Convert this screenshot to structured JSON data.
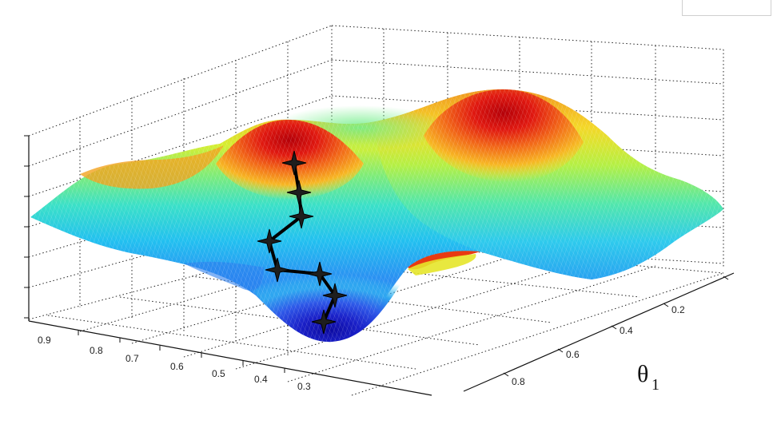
{
  "chart_data": {
    "type": "surface",
    "colormap": "jet",
    "grid": true,
    "x_axis": {
      "label_symbol": "θ",
      "label_subscript": "1",
      "ticks": [
        "0.2",
        "0.4",
        "0.6",
        "0.8"
      ],
      "tick_values": [
        0.2,
        0.4,
        0.6,
        0.8
      ],
      "range": [
        0,
        1
      ]
    },
    "y_axis": {
      "ticks": [
        "0.9",
        "0.8",
        "0.7",
        "0.6",
        "0.5",
        "0.4",
        "0.3"
      ],
      "tick_values": [
        0.9,
        0.8,
        0.7,
        0.6,
        0.5,
        0.4,
        0.3
      ],
      "range": [
        0,
        1
      ]
    },
    "surface_features": [
      {
        "name": "peak-left",
        "x": 0.25,
        "y": 0.5,
        "level": 0.95
      },
      {
        "name": "peak-right",
        "x": 0.75,
        "y": 0.4,
        "level": 0.98
      },
      {
        "name": "pit",
        "x": 0.55,
        "y": 0.35,
        "level": 0.0
      }
    ],
    "descent_path": {
      "x": [
        0.25,
        0.29,
        0.33,
        0.4,
        0.48,
        0.54,
        0.58,
        0.6
      ],
      "y": [
        0.5,
        0.49,
        0.48,
        0.52,
        0.5,
        0.44,
        0.39,
        0.37
      ],
      "marker": "star",
      "color": "#000000"
    }
  }
}
